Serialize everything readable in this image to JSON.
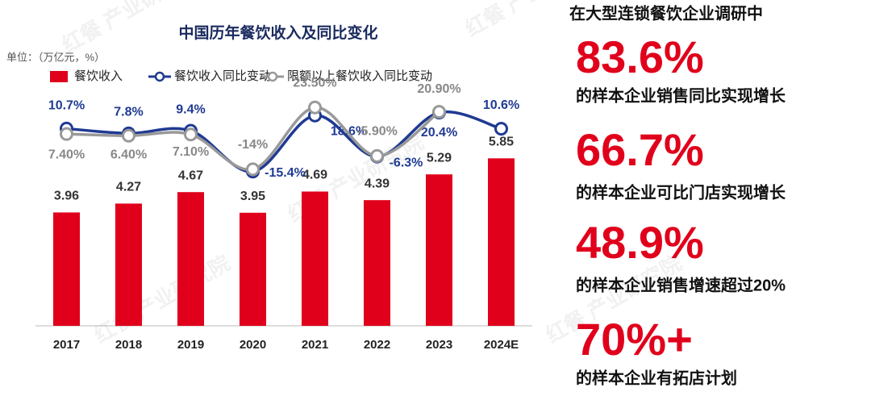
{
  "chart_data": {
    "type": "bar-line",
    "title": "中国历年餐饮收入及同比变化",
    "unit": "单位：（万亿元，%）",
    "categories": [
      "2017",
      "2018",
      "2019",
      "2020",
      "2021",
      "2022",
      "2023",
      "2024E"
    ],
    "ylim": [
      0,
      8
    ],
    "y2lim": [
      -109,
      30
    ],
    "series": [
      {
        "name": "餐饮收入",
        "type": "bar",
        "color": "#e0001b",
        "values": [
          3.96,
          4.27,
          4.67,
          3.95,
          4.69,
          4.39,
          5.29,
          5.85
        ]
      },
      {
        "name": "餐饮收入同比变动",
        "type": "line",
        "axis": "y2",
        "color": "#1f3a93",
        "values": [
          10.7,
          7.8,
          9.4,
          -15.4,
          18.6,
          -6.3,
          20.4,
          10.6
        ],
        "value_labels": [
          "10.7%",
          "7.8%",
          "9.4%",
          "-15.4%",
          "18.6%",
          "-6.3%",
          "20.4%",
          "10.6%"
        ]
      },
      {
        "name": "限额以上餐饮收入同比变动",
        "type": "line",
        "axis": "y2",
        "color": "#999999",
        "values": [
          7.4,
          6.4,
          7.1,
          -14,
          23.5,
          -5.9,
          20.9,
          null
        ],
        "value_labels": [
          "7.40%",
          "6.40%",
          "7.10%",
          "-14%",
          "23.50%",
          "-5.90%",
          "20.90%",
          null
        ]
      }
    ]
  },
  "watermark": "红餐 产业研究院",
  "survey": {
    "heading": "在大型连锁餐饮企业调研中",
    "items": [
      {
        "stat": "83.6%",
        "text": "的样本企业销售同比实现增长"
      },
      {
        "stat": "66.7%",
        "text": "的样本企业可比门店实现增长"
      },
      {
        "stat": "48.9%",
        "text": "的样本企业销售增速超过20%"
      },
      {
        "stat": "70%+",
        "text": "的样本企业有拓店计划"
      }
    ]
  }
}
